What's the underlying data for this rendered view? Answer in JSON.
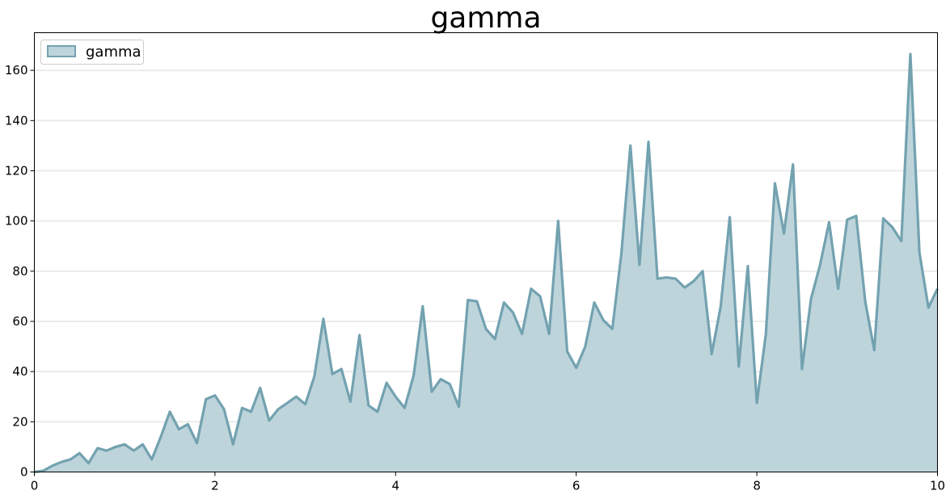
{
  "chart_data": {
    "type": "area",
    "title": "gamma",
    "xlabel": "",
    "ylabel": "",
    "xlim": [
      0,
      10
    ],
    "ylim": [
      0,
      175
    ],
    "xticks": [
      0,
      2,
      4,
      6,
      8,
      10
    ],
    "yticks": [
      0,
      20,
      40,
      60,
      80,
      100,
      120,
      140,
      160
    ],
    "grid": "horizontal",
    "legend": {
      "position": "top-left",
      "entries": [
        "gamma"
      ]
    },
    "colors": {
      "fill": "#bed4db",
      "line": "#73a2b0",
      "grid": "#ebebeb"
    },
    "series": [
      {
        "name": "gamma",
        "x": [
          0,
          0.1,
          0.2,
          0.3,
          0.4,
          0.5,
          0.6,
          0.7,
          0.8,
          0.9,
          1.0,
          1.1,
          1.2,
          1.3,
          1.4,
          1.5,
          1.6,
          1.7,
          1.8,
          1.9,
          2.0,
          2.1,
          2.2,
          2.3,
          2.4,
          2.5,
          2.6,
          2.7,
          2.8,
          2.9,
          3.0,
          3.1,
          3.2,
          3.3,
          3.4,
          3.5,
          3.6,
          3.7,
          3.8,
          3.9,
          4.0,
          4.1,
          4.2,
          4.3,
          4.4,
          4.5,
          4.6,
          4.7,
          4.8,
          4.9,
          5.0,
          5.1,
          5.2,
          5.3,
          5.4,
          5.5,
          5.6,
          5.7,
          5.8,
          5.9,
          6.0,
          6.1,
          6.2,
          6.3,
          6.4,
          6.5,
          6.6,
          6.7,
          6.8,
          6.9,
          7.0,
          7.1,
          7.2,
          7.3,
          7.4,
          7.5,
          7.6,
          7.7,
          7.8,
          7.9,
          8.0,
          8.1,
          8.2,
          8.3,
          8.4,
          8.5,
          8.6,
          8.7,
          8.8,
          8.9,
          9.0,
          9.1,
          9.2,
          9.3,
          9.4,
          9.5,
          9.6,
          9.7,
          9.8,
          9.9,
          10.0
        ],
        "y": [
          0,
          0.5,
          2.5,
          4,
          5,
          7.5,
          3.5,
          9.5,
          8.5,
          10,
          11,
          8.5,
          11,
          5,
          14,
          24,
          17,
          19,
          11.5,
          29,
          30.5,
          25,
          11,
          25.5,
          24,
          33.5,
          20.5,
          25,
          27.5,
          30,
          27,
          38,
          61,
          39,
          41,
          28,
          54.5,
          26.5,
          24,
          35.5,
          30,
          25.5,
          38.5,
          66,
          32,
          37,
          35,
          26,
          68.5,
          68,
          57,
          53,
          67.5,
          63.5,
          55,
          73,
          70,
          55,
          100,
          48,
          41.5,
          50,
          67.5,
          60.5,
          57,
          87,
          130,
          82.5,
          131.5,
          77,
          77.5,
          77,
          73.5,
          76,
          80,
          47,
          66,
          101.5,
          42,
          82,
          27.5,
          55,
          115,
          95,
          122.5,
          41,
          69,
          82.5,
          99.5,
          73,
          100.5,
          102,
          68,
          48.5,
          101,
          97.5,
          92,
          166.5,
          87.5,
          65.5,
          73
        ]
      }
    ]
  }
}
